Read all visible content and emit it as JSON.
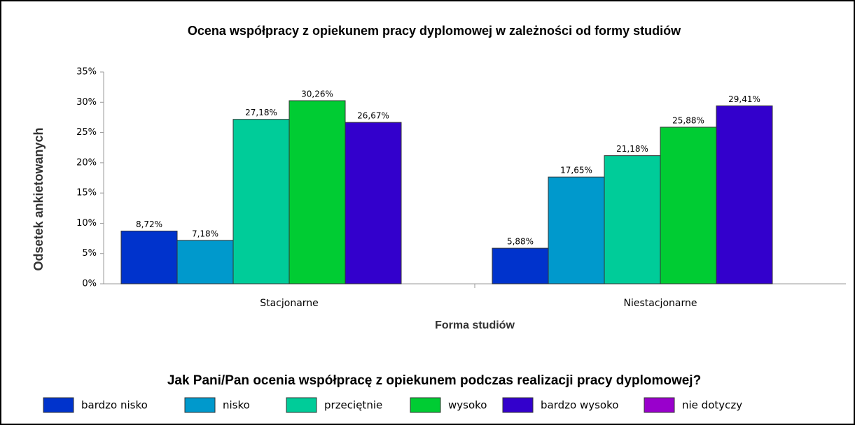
{
  "chart_data": {
    "type": "bar",
    "title": "Ocena współpracy z opiekunem pracy dyplomowej w zależności od formy studiów",
    "x_label": "Forma studiów",
    "y_label": "Odsetek ankietowanych",
    "legend_title": "Jak Pani/Pan ocenia współpracę z opiekunem podczas realizacji pracy dyplomowej?",
    "legend": "bottom",
    "categories": [
      "Stacjonarne",
      "Niestacjonarne"
    ],
    "ylim": [
      0,
      35
    ],
    "yticks": [
      {
        "value": 0,
        "label": "0%"
      },
      {
        "value": 5,
        "label": "5%"
      },
      {
        "value": 10,
        "label": "10%"
      },
      {
        "value": 15,
        "label": "15%"
      },
      {
        "value": 20,
        "label": "20%"
      },
      {
        "value": 25,
        "label": "25%"
      },
      {
        "value": 30,
        "label": "30%"
      },
      {
        "value": 35,
        "label": "35%"
      }
    ],
    "series": [
      {
        "name": "bardzo nisko",
        "color": "#0033cc",
        "values": [
          8.72,
          5.88
        ],
        "value_labels": [
          "8,72%",
          "5,88%"
        ]
      },
      {
        "name": "nisko",
        "color": "#0099cc",
        "values": [
          7.18,
          17.65
        ],
        "value_labels": [
          "7,18%",
          "17,65%"
        ]
      },
      {
        "name": "przeciętnie",
        "color": "#00cc99",
        "values": [
          27.18,
          21.18
        ],
        "value_labels": [
          "27,18%",
          "21,18%"
        ]
      },
      {
        "name": "wysoko",
        "color": "#00cc33",
        "values": [
          30.26,
          25.88
        ],
        "value_labels": [
          "30,26%",
          "25,88%"
        ]
      },
      {
        "name": "bardzo wysoko",
        "color": "#3300cc",
        "values": [
          26.67,
          29.41
        ],
        "value_labels": [
          "26,67%",
          "29,41%"
        ]
      },
      {
        "name": "nie dotyczy",
        "color": "#9900cc",
        "values": [
          null,
          null
        ]
      }
    ]
  }
}
